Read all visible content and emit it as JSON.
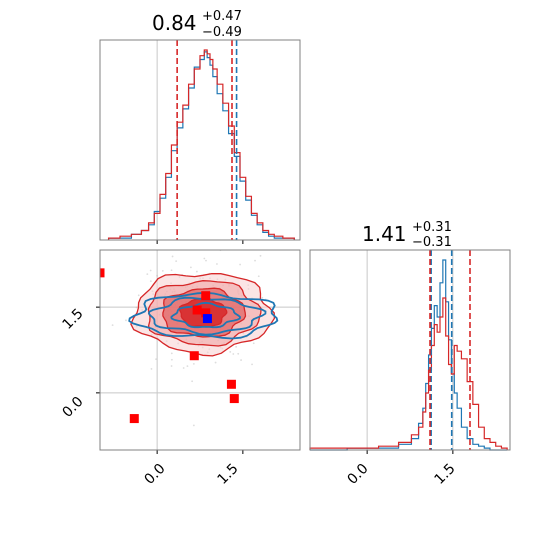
{
  "chart_data": {
    "type": "corner",
    "parameters": [
      {
        "title_value": "0.84",
        "title_plus": "+0.47",
        "title_minus": "−0.49",
        "range": [
          -1.0,
          2.5
        ],
        "ticks": [
          0.0,
          1.5
        ],
        "tick_labels": [
          "0.0",
          "1.5"
        ],
        "red_quantiles": [
          0.35,
          1.31
        ],
        "blue_quantiles": [
          1.39
        ],
        "reference_line": 0.0,
        "hist_bins_center": [
          -0.75,
          -0.55,
          -0.35,
          -0.2,
          -0.1,
          0.0,
          0.1,
          0.2,
          0.3,
          0.4,
          0.5,
          0.6,
          0.7,
          0.8,
          0.85,
          0.9,
          0.95,
          1.0,
          1.1,
          1.2,
          1.3,
          1.4,
          1.5,
          1.6,
          1.7,
          1.8,
          1.9,
          2.0,
          2.1,
          2.3
        ],
        "hist_red": [
          1,
          2,
          3,
          5,
          9,
          14,
          24,
          35,
          50,
          62,
          71,
          82,
          90,
          97,
          100,
          98,
          95,
          90,
          82,
          72,
          60,
          46,
          33,
          23,
          14,
          9,
          5,
          3,
          2,
          1
        ],
        "hist_blue": [
          1,
          1,
          3,
          5,
          8,
          15,
          22,
          33,
          47,
          59,
          69,
          80,
          91,
          95,
          99,
          96,
          92,
          86,
          77,
          68,
          56,
          44,
          31,
          21,
          13,
          8,
          4,
          2,
          1,
          1
        ]
      },
      {
        "title_value": "1.41",
        "title_plus": "+0.31",
        "title_minus": "−0.31",
        "range": [
          -1.0,
          2.5
        ],
        "ticks": [
          0.0,
          1.5
        ],
        "tick_labels": [
          "0.0",
          "1.5"
        ],
        "red_quantiles": [
          1.1,
          1.8
        ],
        "blue_quantiles": [
          1.12,
          1.48
        ],
        "reference_line": 0.0,
        "reference_line_2": 1.5,
        "hist_bins_center": [
          -0.7,
          0.0,
          0.4,
          0.7,
          0.85,
          0.95,
          1.0,
          1.05,
          1.1,
          1.15,
          1.2,
          1.25,
          1.3,
          1.35,
          1.4,
          1.45,
          1.5,
          1.55,
          1.6,
          1.7,
          1.8,
          1.9,
          2.0,
          2.1,
          2.2,
          2.3,
          2.4
        ],
        "hist_red": [
          1,
          1,
          2,
          4,
          8,
          12,
          20,
          30,
          42,
          55,
          66,
          62,
          70,
          80,
          60,
          45,
          40,
          55,
          52,
          48,
          36,
          24,
          12,
          6,
          4,
          2,
          1
        ],
        "hist_blue": [
          0,
          1,
          1,
          3,
          6,
          14,
          22,
          35,
          50,
          64,
          76,
          70,
          88,
          100,
          78,
          58,
          40,
          30,
          22,
          12,
          6,
          3,
          2,
          1,
          0,
          0,
          0
        ]
      }
    ],
    "markers": {
      "red": [
        {
          "x": -1.0,
          "y": 2.1
        },
        {
          "x": 0.85,
          "y": 1.7
        },
        {
          "x": 0.7,
          "y": 1.45
        },
        {
          "x": 0.85,
          "y": 1.4
        },
        {
          "x": 0.65,
          "y": 0.65
        },
        {
          "x": 1.3,
          "y": 0.15
        },
        {
          "x": 1.35,
          "y": -0.1
        },
        {
          "x": -0.4,
          "y": -0.45
        }
      ],
      "blue": [
        {
          "x": 0.88,
          "y": 1.3
        }
      ]
    },
    "contours": {
      "center": [
        0.8,
        1.4
      ],
      "red_levels": [
        {
          "rx": 0.4,
          "ry": 0.25,
          "fill": "#d62728",
          "opacity": 0.85
        },
        {
          "rx": 0.72,
          "ry": 0.42,
          "fill": "#e06060",
          "opacity": 0.7
        },
        {
          "rx": 0.98,
          "ry": 0.56,
          "fill": "#f0a0a0",
          "opacity": 0.55
        },
        {
          "rx": 1.2,
          "ry": 0.7,
          "fill": "#f8d0d0",
          "opacity": 0.55
        }
      ],
      "blue_levels": [
        {
          "rx": 0.55,
          "ry": 0.2
        },
        {
          "rx": 0.95,
          "ry": 0.3
        },
        {
          "rx": 1.25,
          "ry": 0.38
        }
      ]
    },
    "colors": {
      "red": "#d62728",
      "blue": "#1f77b4",
      "marker_red": "#ff0000",
      "marker_blue": "#0000ff",
      "grid": "#c8c8c8",
      "axis": "#808080"
    }
  }
}
